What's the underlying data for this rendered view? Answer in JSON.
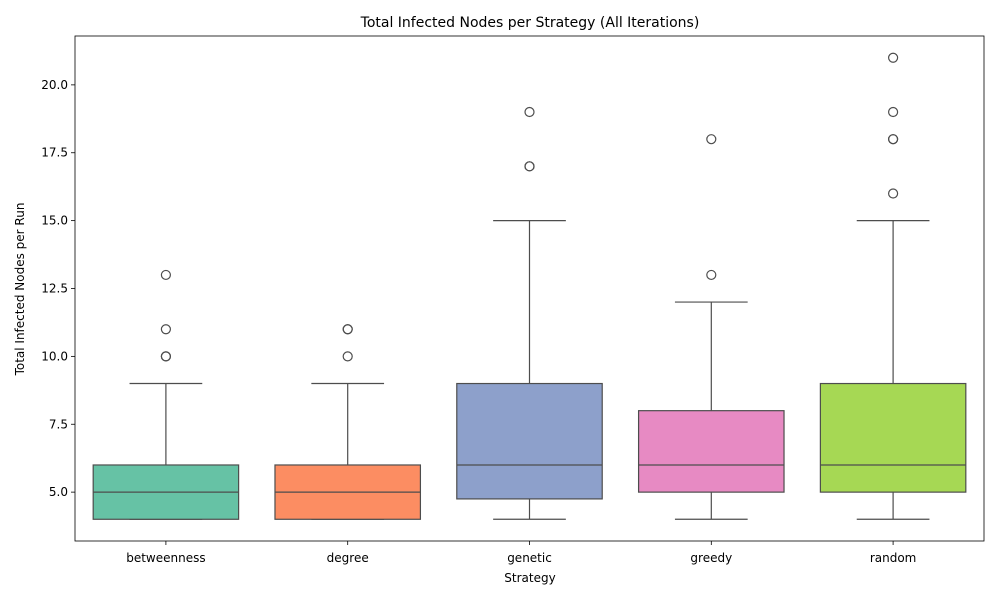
{
  "chart_data": {
    "type": "box",
    "title": "Total Infected Nodes per Strategy (All Iterations)",
    "xlabel": "Strategy",
    "ylabel": "Total Infected Nodes per Run",
    "categories": [
      "betweenness",
      "degree",
      "genetic",
      "greedy",
      "random"
    ],
    "ylim": [
      3.2,
      21.8
    ],
    "yticks": [
      5.0,
      7.5,
      10.0,
      12.5,
      15.0,
      17.5,
      20.0
    ],
    "ytick_labels": [
      "5.0",
      "7.5",
      "10.0",
      "12.5",
      "15.0",
      "17.5",
      "20.0"
    ],
    "grid": false,
    "boxes": [
      {
        "category": "betweenness",
        "whisker_low": 4,
        "q1": 4,
        "median": 5,
        "q3": 6,
        "whisker_high": 9,
        "outliers": [
          10,
          10,
          11,
          13
        ],
        "color": "#66c2a5"
      },
      {
        "category": "degree",
        "whisker_low": 4,
        "q1": 4,
        "median": 5,
        "q3": 6,
        "whisker_high": 9,
        "outliers": [
          10,
          11,
          11
        ],
        "color": "#fc8d62"
      },
      {
        "category": "genetic",
        "whisker_low": 4,
        "q1": 4.75,
        "median": 6,
        "q3": 9,
        "whisker_high": 15,
        "outliers": [
          17,
          17,
          19
        ],
        "color": "#8da0cb"
      },
      {
        "category": "greedy",
        "whisker_low": 4,
        "q1": 5,
        "median": 6,
        "q3": 8,
        "whisker_high": 12,
        "outliers": [
          13,
          18
        ],
        "color": "#e78ac3"
      },
      {
        "category": "random",
        "whisker_low": 4,
        "q1": 5,
        "median": 6,
        "q3": 9,
        "whisker_high": 15,
        "outliers": [
          16,
          18,
          18,
          19,
          21
        ],
        "color": "#a6d854"
      }
    ]
  }
}
